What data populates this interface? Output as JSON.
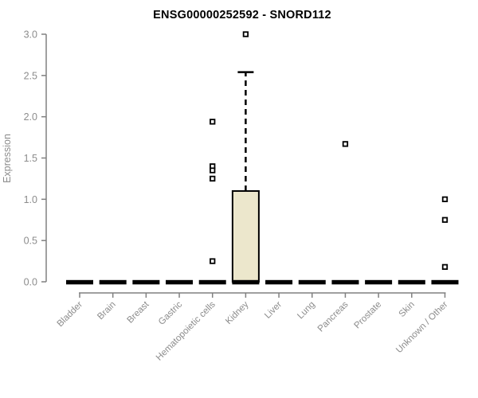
{
  "colors": {
    "background": "#ffffff",
    "axis_line": "#808080",
    "axis_text": "#8c8c8c",
    "title_text": "#000000",
    "box_fill": "#ece7cc",
    "box_stroke": "#000000",
    "median_color": "#000000",
    "outlier_stroke": "#000000",
    "outlier_fill": "#ffffff"
  },
  "chart_data": {
    "type": "boxplot",
    "title": "ENSG00000252592 - SNORD112",
    "ylabel": "Expression",
    "xlabel": "",
    "ylim": [
      0,
      3.0
    ],
    "ytick_labels": [
      "0.0",
      "0.5",
      "1.0",
      "1.5",
      "2.0",
      "2.5",
      "3.0"
    ],
    "grid": false,
    "legend": false,
    "categories": [
      "Bladder",
      "Brain",
      "Breast",
      "Gastric",
      "Hematopoietic cells",
      "Kidney",
      "Liver",
      "Lung",
      "Pancreas",
      "Prostate",
      "Skin",
      "Unknown / Other"
    ],
    "series": [
      {
        "category": "Bladder",
        "whisker_low": 0,
        "q1": 0,
        "median": 0,
        "q3": 0,
        "whisker_high": 0,
        "outliers": []
      },
      {
        "category": "Brain",
        "whisker_low": 0,
        "q1": 0,
        "median": 0,
        "q3": 0,
        "whisker_high": 0,
        "outliers": []
      },
      {
        "category": "Breast",
        "whisker_low": 0,
        "q1": 0,
        "median": 0,
        "q3": 0,
        "whisker_high": 0,
        "outliers": []
      },
      {
        "category": "Gastric",
        "whisker_low": 0,
        "q1": 0,
        "median": 0,
        "q3": 0,
        "whisker_high": 0,
        "outliers": []
      },
      {
        "category": "Hematopoietic cells",
        "whisker_low": 0,
        "q1": 0,
        "median": 0,
        "q3": 0,
        "whisker_high": 0,
        "outliers": [
          1.94,
          1.4,
          1.35,
          1.25,
          0.25
        ]
      },
      {
        "category": "Kidney",
        "whisker_low": 0,
        "q1": 0,
        "median": 0,
        "q3": 1.1,
        "whisker_high": 2.54,
        "outliers": [
          3.0
        ]
      },
      {
        "category": "Liver",
        "whisker_low": 0,
        "q1": 0,
        "median": 0,
        "q3": 0,
        "whisker_high": 0,
        "outliers": []
      },
      {
        "category": "Lung",
        "whisker_low": 0,
        "q1": 0,
        "median": 0,
        "q3": 0,
        "whisker_high": 0,
        "outliers": []
      },
      {
        "category": "Pancreas",
        "whisker_low": 0,
        "q1": 0,
        "median": 0,
        "q3": 0,
        "whisker_high": 0,
        "outliers": [
          1.67
        ]
      },
      {
        "category": "Prostate",
        "whisker_low": 0,
        "q1": 0,
        "median": 0,
        "q3": 0,
        "whisker_high": 0,
        "outliers": []
      },
      {
        "category": "Skin",
        "whisker_low": 0,
        "q1": 0,
        "median": 0,
        "q3": 0,
        "whisker_high": 0,
        "outliers": []
      },
      {
        "category": "Unknown / Other",
        "whisker_low": 0,
        "q1": 0,
        "median": 0,
        "q3": 0,
        "whisker_high": 0,
        "outliers": [
          1.0,
          0.75,
          0.18
        ]
      }
    ]
  }
}
